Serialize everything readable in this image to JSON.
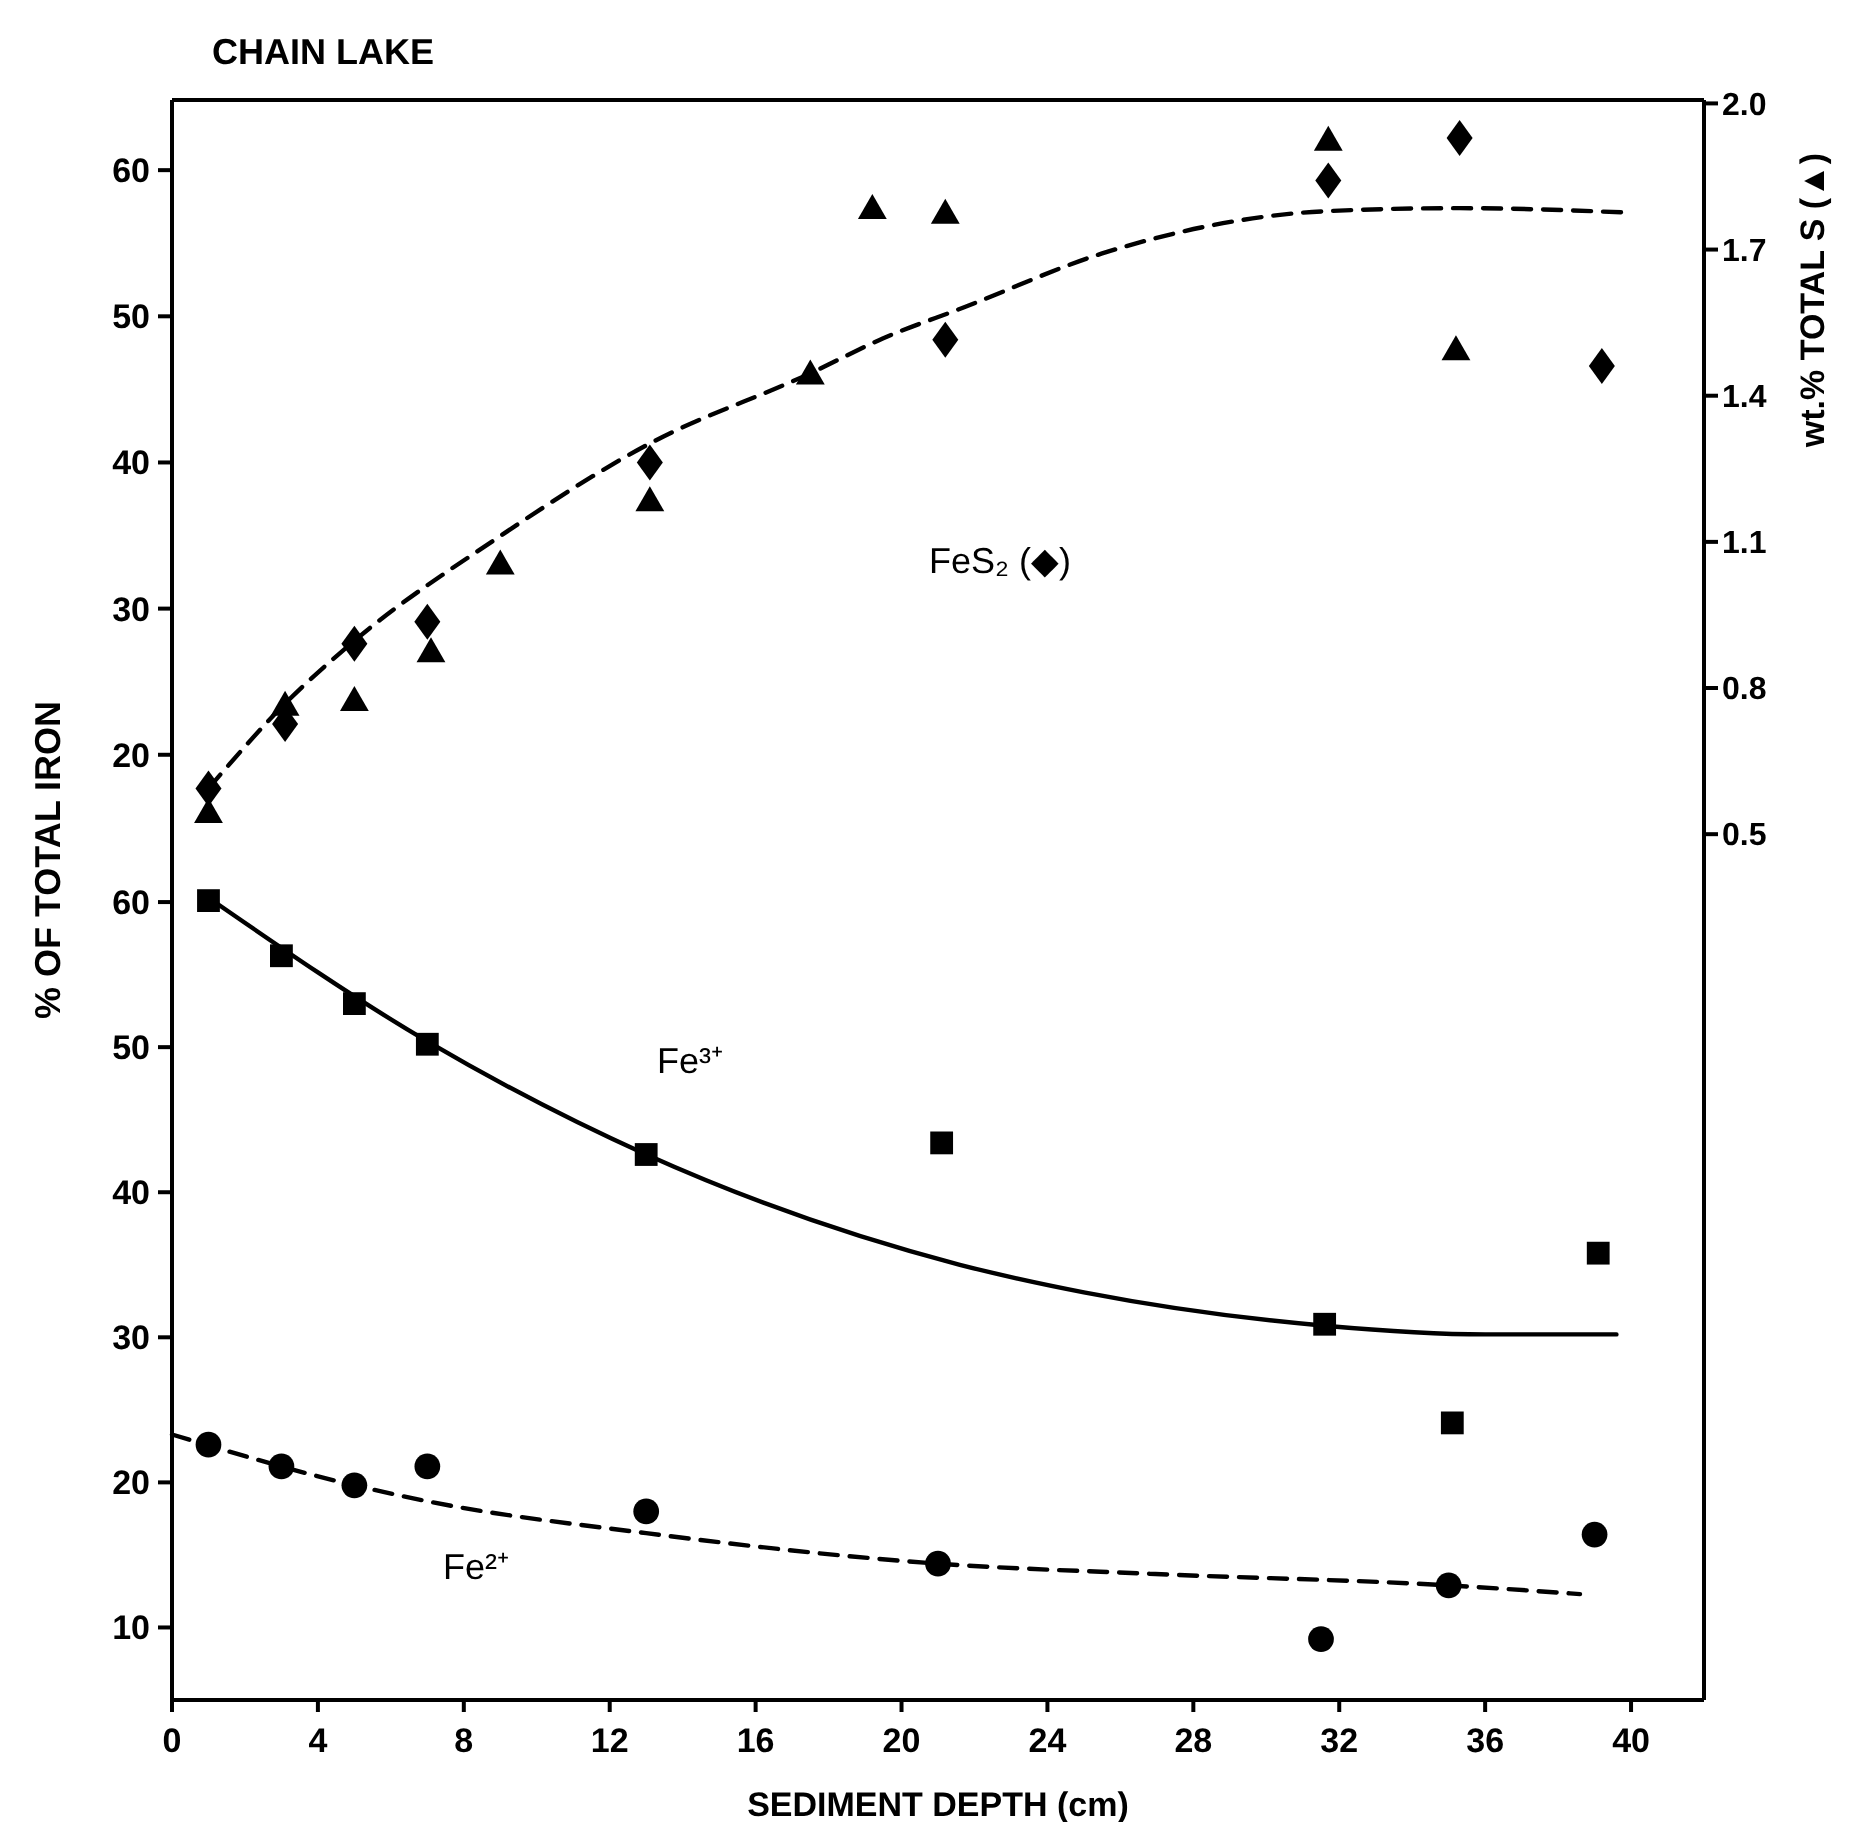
{
  "chart_data": [
    {
      "type": "scatter",
      "title": "CHAIN LAKE",
      "y2label": "wt.% TOTAL S (▲)",
      "xlim": [
        0,
        42
      ],
      "xticks": [
        0,
        4,
        8,
        12,
        16,
        20,
        24,
        28,
        32,
        36,
        40
      ],
      "ylim": [
        12.8,
        64.8
      ],
      "yticks": [
        20,
        30,
        40,
        50,
        60
      ],
      "y2lim": [
        0.447,
        2.007
      ],
      "y2ticks": [
        0.5,
        0.8,
        1.1,
        1.4,
        1.7,
        {
          "value": 2,
          "label": "2.0"
        }
      ],
      "tick_labels": "y",
      "series": [
        {
          "type": "line",
          "color": "#000000",
          "marker": "none",
          "line_style": "dashed",
          "x": [
            1,
            3.1,
            5,
            8.9,
            13.1,
            17.5,
            19.5,
            21.7,
            25.5,
            31.7,
            35.3,
            39.9
          ],
          "values": [
            17.7,
            23.5,
            27.8,
            34.8,
            41.3,
            46.1,
            48.5,
            50.6,
            54.3,
            57.2,
            57.4,
            57.1
          ]
        },
        {
          "name": "FeS₂ (◆)",
          "color": "#000000",
          "marker": "diamond",
          "x": [
            1,
            3.1,
            5,
            7,
            13.1,
            21.2,
            31.7,
            35.3,
            39.2
          ],
          "values": [
            17.7,
            22.1,
            27.6,
            29.1,
            40,
            48.4,
            59.3,
            62.2,
            46.6
          ]
        },
        {
          "color": "#000000",
          "marker": "triangle",
          "axis": "y2",
          "x": [
            1,
            3.1,
            5,
            7.1,
            9,
            13.1,
            17.5,
            19.2,
            21.2,
            31.7,
            35.2
          ],
          "values": [
            0.54,
            0.76,
            0.77,
            0.87,
            1.05,
            1.18,
            1.44,
            1.78,
            1.77,
            1.92,
            1.49
          ]
        }
      ]
    },
    {
      "type": "scatter",
      "xlabel": "SEDIMENT DEPTH (cm)",
      "ylabel": "% OF TOTAL IRON",
      "xlim": [
        0,
        42
      ],
      "xticks": [
        0,
        4,
        8,
        12,
        16,
        20,
        24,
        28,
        32,
        36,
        40
      ],
      "ylim": [
        5,
        62.9
      ],
      "yticks": [
        10,
        20,
        30,
        40,
        50,
        60
      ],
      "series": [
        {
          "type": "line",
          "name": "Fe³⁺",
          "color": "#000000",
          "marker": "none",
          "line_style": "solid",
          "x": [
            1,
            7,
            13,
            21.6,
            25,
            31.6,
            36,
            39.6
          ],
          "values": [
            60.3,
            50.4,
            42.6,
            35,
            33.1,
            30.8,
            30.2,
            30.2
          ]
        },
        {
          "color": "#000000",
          "marker": "square",
          "x": [
            1,
            3,
            5,
            7,
            13,
            21.1,
            31.6,
            35.1,
            39.1
          ],
          "values": [
            60.1,
            56.3,
            53,
            50.2,
            42.6,
            43.4,
            30.9,
            24.1,
            35.8
          ]
        },
        {
          "type": "line",
          "name": "Fe²⁺",
          "color": "#000000",
          "marker": "none",
          "line_style": "dashed",
          "x": [
            0,
            5,
            7,
            13,
            21,
            26.8,
            35,
            38.6
          ],
          "values": [
            23.3,
            19.8,
            18.7,
            16.5,
            14.4,
            13.7,
            12.9,
            12.3
          ]
        },
        {
          "color": "#000000",
          "marker": "circle",
          "x": [
            1,
            3,
            5,
            7,
            13,
            21,
            31.5,
            35,
            39
          ],
          "values": [
            22.6,
            21.1,
            19.8,
            21.1,
            18,
            14.4,
            9.2,
            12.9,
            16.4
          ]
        }
      ]
    }
  ]
}
